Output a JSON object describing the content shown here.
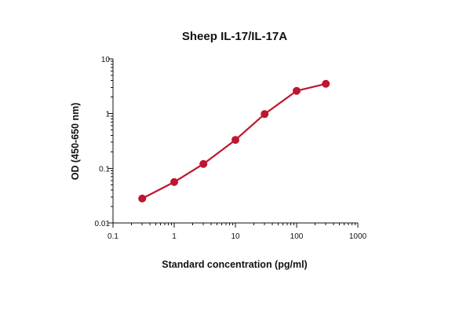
{
  "chart_data": {
    "type": "line",
    "title": "Sheep IL-17/IL-17A",
    "xlabel": "Standard concentration (pg/ml)",
    "ylabel": "OD (450-650 nm)",
    "x_scale": "log",
    "y_scale": "log",
    "xlim": [
      0.1,
      1000
    ],
    "ylim": [
      0.01,
      10
    ],
    "x_ticks": [
      0.1,
      1,
      10,
      100,
      1000
    ],
    "x_tick_labels": [
      "0.1",
      "1",
      "10",
      "100",
      "1000"
    ],
    "y_ticks": [
      0.01,
      0.1,
      1,
      10
    ],
    "y_tick_labels": [
      "0.01",
      "0.1",
      "1",
      "10"
    ],
    "grid": false,
    "legend": "none",
    "series": [
      {
        "color": "#c0152f",
        "x": [
          0.3,
          1,
          3,
          10,
          30,
          100,
          300
        ],
        "y": [
          0.028,
          0.056,
          0.12,
          0.33,
          0.98,
          2.6,
          3.5
        ]
      }
    ]
  }
}
